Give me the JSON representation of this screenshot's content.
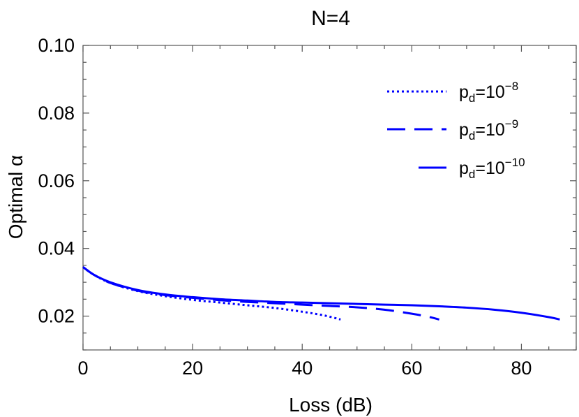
{
  "chart_data": {
    "type": "line",
    "title": "N=4",
    "xlabel": "Loss (dB)",
    "ylabel": "Optimal α",
    "xlim": [
      0,
      90
    ],
    "ylim": [
      0.01,
      0.1
    ],
    "xticks": [
      0,
      20,
      40,
      60,
      80
    ],
    "xtick_labels": [
      "0",
      "20",
      "40",
      "60",
      "80"
    ],
    "yticks": [
      0.02,
      0.04,
      0.06,
      0.08,
      0.1
    ],
    "ytick_labels": [
      "0.02",
      "0.04",
      "0.06",
      "0.08",
      "0.10"
    ],
    "grid": false,
    "legend_position": "top-right",
    "series_color": "#0000ff",
    "series": [
      {
        "base": "p",
        "sub": "d",
        "mid": "=10",
        "exp": "−8",
        "style": "dotted",
        "x": [
          0,
          2,
          5,
          10,
          15,
          20,
          25,
          30,
          35,
          40,
          44,
          47
        ],
        "y": [
          0.0345,
          0.0322,
          0.0298,
          0.0274,
          0.0259,
          0.0248,
          0.024,
          0.0232,
          0.0224,
          0.0213,
          0.0202,
          0.019
        ]
      },
      {
        "base": "p",
        "sub": "d",
        "mid": "=10",
        "exp": "−9",
        "style": "dashed",
        "x": [
          0,
          2,
          5,
          10,
          15,
          20,
          25,
          30,
          35,
          40,
          45,
          50,
          55,
          60,
          63,
          65
        ],
        "y": [
          0.0345,
          0.0322,
          0.0298,
          0.0275,
          0.0262,
          0.0254,
          0.0247,
          0.0242,
          0.0238,
          0.0234,
          0.023,
          0.0226,
          0.0219,
          0.0207,
          0.0198,
          0.019
        ]
      },
      {
        "base": "p",
        "sub": "d",
        "mid": "=10",
        "exp": "−10",
        "style": "solid",
        "x": [
          0,
          2,
          5,
          10,
          15,
          20,
          25,
          30,
          35,
          40,
          45,
          50,
          55,
          60,
          65,
          70,
          75,
          80,
          85,
          87
        ],
        "y": [
          0.0345,
          0.0322,
          0.03,
          0.0277,
          0.0264,
          0.0256,
          0.025,
          0.0246,
          0.0242,
          0.024,
          0.0238,
          0.0236,
          0.0234,
          0.0232,
          0.0229,
          0.0225,
          0.0219,
          0.021,
          0.0197,
          0.019
        ]
      }
    ]
  }
}
